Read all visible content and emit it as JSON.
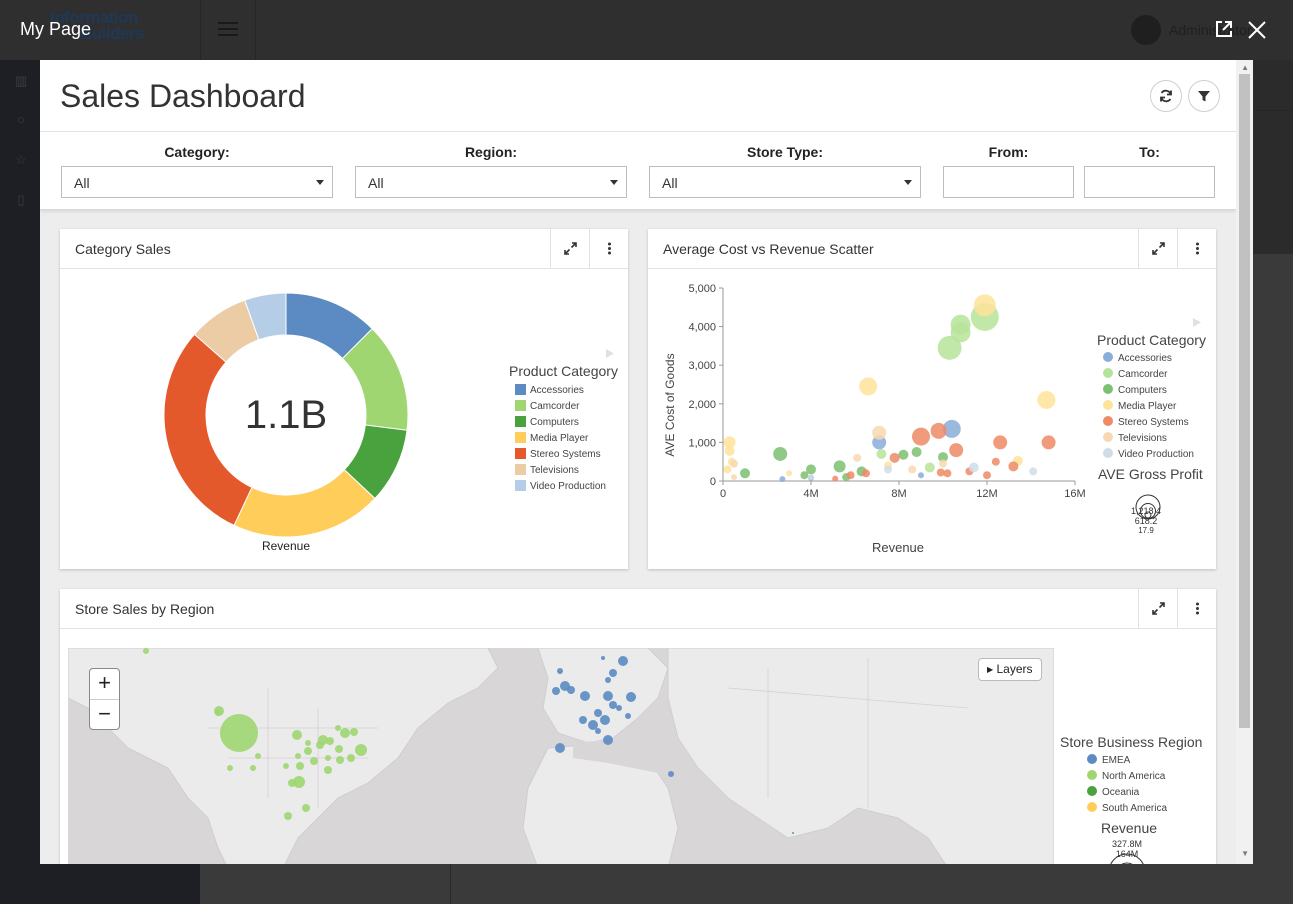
{
  "background": {
    "logo_line1": "Information",
    "logo_line2": "Builders",
    "user": "Administrator"
  },
  "modal": {
    "title": "My Page"
  },
  "dashboard": {
    "title": "Sales Dashboard"
  },
  "filters": {
    "category": {
      "label": "Category:",
      "value": "All"
    },
    "region": {
      "label": "Region:",
      "value": "All"
    },
    "store_type": {
      "label": "Store Type:",
      "value": "All"
    },
    "from": {
      "label": "From:",
      "value": ""
    },
    "to": {
      "label": "To:",
      "value": ""
    }
  },
  "panels": {
    "category_sales": {
      "title": "Category Sales"
    },
    "scatter": {
      "title": "Average Cost vs Revenue Scatter"
    },
    "map": {
      "title": "Store Sales by Region",
      "layers_label": "Layers",
      "zoom_in": "+",
      "zoom_out": "−"
    }
  },
  "chart_data": [
    {
      "type": "pie",
      "variant": "donut",
      "center_label": "1.1B",
      "xlabel": "Revenue",
      "legend_title": "Product Category",
      "categories": [
        "Accessories",
        "Camcorder",
        "Computers",
        "Media Player",
        "Stereo Systems",
        "Televisions",
        "Video Production"
      ],
      "values": [
        12.5,
        14.5,
        10.0,
        20.0,
        29.5,
        8.0,
        5.5
      ],
      "colors": [
        "#5b8bc2",
        "#9fd672",
        "#4aa23e",
        "#fecd5a",
        "#e4592c",
        "#ebcca5",
        "#b5cde6"
      ]
    },
    {
      "type": "scatter",
      "xlabel": "Revenue",
      "ylabel": "AVE Cost of Goods",
      "x_ticks": [
        "0",
        "4M",
        "8M",
        "12M",
        "16M"
      ],
      "y_ticks": [
        "0",
        "1,000",
        "2,000",
        "3,000",
        "4,000",
        "5,000"
      ],
      "xlim": [
        0,
        16000000
      ],
      "ylim": [
        0,
        5000
      ],
      "legend_title": "Product Category",
      "legend_items": [
        "Accessories",
        "Camcorder",
        "Computers",
        "Media Player",
        "Stereo Systems",
        "Televisions",
        "Video Production"
      ],
      "colors": [
        "#8aacd8",
        "#b6e39a",
        "#7cc070",
        "#fee39a",
        "#ef8a66",
        "#f8d8b0",
        "#cfdde9"
      ],
      "size_legend_title": "AVE Gross Profit",
      "size_legend_values": [
        "1,218.4",
        "618.2",
        "17.9"
      ],
      "series": [
        {
          "name": "Accessories",
          "points": [
            [
              10.4,
              1350,
              18
            ],
            [
              7.1,
              1000,
              14
            ],
            [
              2.7,
              50,
              6
            ],
            [
              4.0,
              80,
              6
            ],
            [
              9.0,
              150,
              6
            ]
          ]
        },
        {
          "name": "Camcorder",
          "points": [
            [
              11.9,
              4250,
              28
            ],
            [
              10.8,
              4050,
              20
            ],
            [
              10.8,
              3850,
              20
            ],
            [
              10.3,
              3450,
              24
            ],
            [
              7.2,
              700,
              10
            ],
            [
              9.4,
              350,
              10
            ]
          ]
        },
        {
          "name": "Computers",
          "points": [
            [
              2.6,
              700,
              14
            ],
            [
              5.3,
              380,
              12
            ],
            [
              4.0,
              300,
              10
            ],
            [
              1.0,
              200,
              10
            ],
            [
              6.3,
              250,
              10
            ],
            [
              8.2,
              680,
              10
            ],
            [
              3.7,
              150,
              8
            ],
            [
              5.6,
              100,
              8
            ],
            [
              8.8,
              750,
              10
            ],
            [
              10.0,
              620,
              10
            ]
          ]
        },
        {
          "name": "Media Player",
          "points": [
            [
              11.9,
              4550,
              22
            ],
            [
              6.6,
              2450,
              18
            ],
            [
              14.7,
              2100,
              18
            ],
            [
              0.3,
              1000,
              12
            ],
            [
              0.3,
              780,
              10
            ],
            [
              0.4,
              500,
              8
            ],
            [
              0.2,
              300,
              8
            ],
            [
              13.4,
              520,
              10
            ],
            [
              3.0,
              200,
              6
            ],
            [
              7.5,
              400,
              8
            ]
          ]
        },
        {
          "name": "Stereo Systems",
          "points": [
            [
              9.0,
              1150,
              18
            ],
            [
              9.8,
              1300,
              16
            ],
            [
              12.6,
              1000,
              14
            ],
            [
              14.8,
              1000,
              14
            ],
            [
              10.6,
              800,
              14
            ],
            [
              7.8,
              600,
              10
            ],
            [
              9.9,
              220,
              8
            ],
            [
              12.4,
              500,
              8
            ],
            [
              13.2,
              380,
              10
            ],
            [
              11.2,
              250,
              8
            ],
            [
              5.8,
              150,
              8
            ],
            [
              6.5,
              200,
              8
            ],
            [
              5.1,
              60,
              6
            ],
            [
              12.0,
              150,
              8
            ],
            [
              10.2,
              200,
              8
            ]
          ]
        },
        {
          "name": "Televisions",
          "points": [
            [
              7.1,
              1250,
              14
            ],
            [
              0.5,
              450,
              8
            ],
            [
              6.1,
              600,
              8
            ],
            [
              10.0,
              450,
              8
            ],
            [
              8.6,
              300,
              8
            ],
            [
              0.5,
              100,
              6
            ]
          ]
        },
        {
          "name": "Video Production",
          "points": [
            [
              7.5,
              300,
              8
            ],
            [
              4.0,
              100,
              6
            ],
            [
              11.4,
              350,
              10
            ],
            [
              14.1,
              250,
              8
            ]
          ]
        }
      ]
    }
  ],
  "map_data": {
    "legend_title": "Store Business Region",
    "legend_items": [
      {
        "name": "EMEA",
        "color": "#5b8bc2"
      },
      {
        "name": "North America",
        "color": "#9fd672"
      },
      {
        "name": "Oceania",
        "color": "#4aa23e"
      },
      {
        "name": "South America",
        "color": "#fecd5a"
      }
    ],
    "size_legend_title": "Revenue",
    "size_legend_values": [
      "327.8M",
      "164M"
    ]
  }
}
